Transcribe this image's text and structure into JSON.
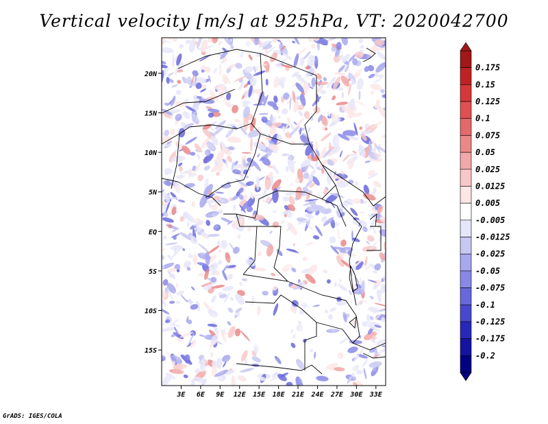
{
  "title": "Vertical velocity [m/s] at 925hPa, VT: 2020042700",
  "credit": "GrADS: IGES/COLA",
  "chart_data": {
    "type": "heatmap",
    "title": "Vertical velocity [m/s] at 925hPa, VT: 2020042700",
    "variable": "Vertical velocity",
    "units": "m/s",
    "level": "925hPa",
    "valid_time": "2020042700",
    "xlim": [
      0,
      34.5
    ],
    "ylim": [
      -19.5,
      24.5
    ],
    "x_ticks": [
      {
        "value": 3,
        "label": "3E"
      },
      {
        "value": 6,
        "label": "6E"
      },
      {
        "value": 9,
        "label": "9E"
      },
      {
        "value": 12,
        "label": "12E"
      },
      {
        "value": 15,
        "label": "15E"
      },
      {
        "value": 18,
        "label": "18E"
      },
      {
        "value": 21,
        "label": "21E"
      },
      {
        "value": 24,
        "label": "24E"
      },
      {
        "value": 27,
        "label": "27E"
      },
      {
        "value": 30,
        "label": "30E"
      },
      {
        "value": 33,
        "label": "33E"
      }
    ],
    "y_ticks": [
      {
        "value": 20,
        "label": "20N"
      },
      {
        "value": 15,
        "label": "15N"
      },
      {
        "value": 10,
        "label": "10N"
      },
      {
        "value": 5,
        "label": "5N"
      },
      {
        "value": 0,
        "label": "EQ"
      },
      {
        "value": -5,
        "label": "5S"
      },
      {
        "value": -10,
        "label": "10S"
      },
      {
        "value": -15,
        "label": "15S"
      }
    ],
    "colorbar": {
      "labels": [
        "0.175",
        "0.15",
        "0.125",
        "0.1",
        "0.075",
        "0.05",
        "0.025",
        "0.0125",
        "0.005",
        "-0.005",
        "-0.0125",
        "-0.025",
        "-0.05",
        "-0.075",
        "-0.1",
        "-0.125",
        "-0.175",
        "-0.2"
      ],
      "colors": [
        "#a01818",
        "#be2222",
        "#d43838",
        "#e05050",
        "#e36a6a",
        "#ea8888",
        "#f2a8a8",
        "#f8c8c8",
        "#fce6e6",
        "#ffffff",
        "#e6e6fa",
        "#c8c8f2",
        "#a8a8ee",
        "#8888e6",
        "#6868dc",
        "#4848cc",
        "#2828b8",
        "#1414a0",
        "#000080"
      ]
    }
  }
}
